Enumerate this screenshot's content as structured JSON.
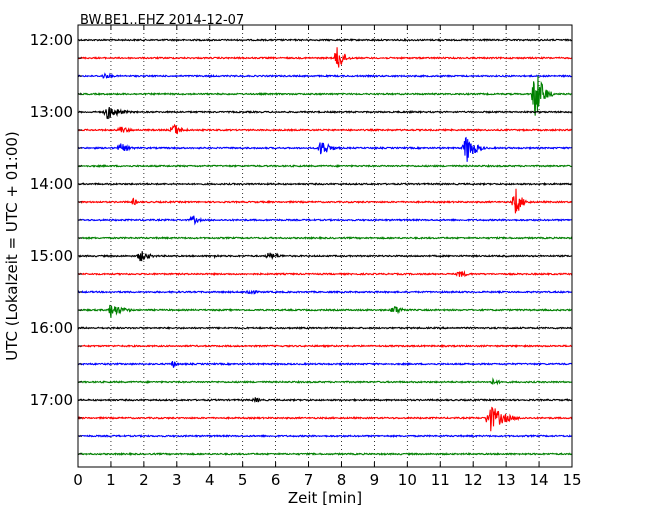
{
  "chart_data": {
    "type": "line",
    "title": "BW.BE1..EHZ 2014-12-07",
    "xlabel": "Zeit  [min]",
    "ylabel": "UTC (Lokalzeit = UTC + 01:00)",
    "xlim": [
      0,
      15
    ],
    "x_ticks": [
      "0",
      "1",
      "2",
      "3",
      "4",
      "5",
      "6",
      "7",
      "8",
      "9",
      "10",
      "11",
      "12",
      "13",
      "14",
      "15"
    ],
    "y_ticks": [
      "12:00",
      "13:00",
      "14:00",
      "15:00",
      "16:00",
      "17:00"
    ],
    "grid": "vertical-dotted",
    "color_cycle": [
      "#000000",
      "#ff0000",
      "#0000ff",
      "#008000"
    ],
    "series": [
      {
        "start": "12:00",
        "color": "#000000",
        "events": []
      },
      {
        "start": "12:15",
        "color": "#ff0000",
        "events": [
          {
            "t": 7.9,
            "amp": 15,
            "dur": 0.5
          }
        ]
      },
      {
        "start": "12:30",
        "color": "#0000ff",
        "events": [
          {
            "t": 0.8,
            "amp": 3,
            "dur": 0.8
          }
        ]
      },
      {
        "start": "12:45",
        "color": "#008000",
        "events": [
          {
            "t": 13.9,
            "amp": 30,
            "dur": 0.6
          }
        ]
      },
      {
        "start": "13:00",
        "color": "#000000",
        "events": [
          {
            "t": 0.9,
            "amp": 8,
            "dur": 1.0
          }
        ]
      },
      {
        "start": "13:15",
        "color": "#ff0000",
        "events": [
          {
            "t": 1.3,
            "amp": 4,
            "dur": 0.8
          },
          {
            "t": 2.9,
            "amp": 7,
            "dur": 0.7
          }
        ]
      },
      {
        "start": "13:30",
        "color": "#0000ff",
        "events": [
          {
            "t": 1.3,
            "amp": 5,
            "dur": 0.8
          },
          {
            "t": 7.4,
            "amp": 10,
            "dur": 0.7
          },
          {
            "t": 11.8,
            "amp": 16,
            "dur": 0.7
          }
        ]
      },
      {
        "start": "13:45",
        "color": "#008000",
        "events": []
      },
      {
        "start": "14:00",
        "color": "#000000",
        "events": []
      },
      {
        "start": "14:15",
        "color": "#ff0000",
        "events": [
          {
            "t": 1.7,
            "amp": 4,
            "dur": 0.3
          },
          {
            "t": 13.3,
            "amp": 15,
            "dur": 0.5
          }
        ]
      },
      {
        "start": "14:30",
        "color": "#0000ff",
        "events": [
          {
            "t": 3.5,
            "amp": 5,
            "dur": 0.5
          }
        ]
      },
      {
        "start": "14:45",
        "color": "#008000",
        "events": []
      },
      {
        "start": "15:00",
        "color": "#000000",
        "events": [
          {
            "t": 1.9,
            "amp": 6,
            "dur": 0.8
          },
          {
            "t": 4.2,
            "amp": 2,
            "dur": 0.3
          },
          {
            "t": 5.8,
            "amp": 4,
            "dur": 1.0
          }
        ]
      },
      {
        "start": "15:15",
        "color": "#ff0000",
        "events": [
          {
            "t": 11.6,
            "amp": 4,
            "dur": 0.7
          }
        ]
      },
      {
        "start": "15:30",
        "color": "#0000ff",
        "events": [
          {
            "t": 5.2,
            "amp": 4,
            "dur": 0.6
          }
        ]
      },
      {
        "start": "15:45",
        "color": "#008000",
        "events": [
          {
            "t": 1.0,
            "amp": 8,
            "dur": 1.0
          },
          {
            "t": 9.6,
            "amp": 5,
            "dur": 0.8
          }
        ]
      },
      {
        "start": "16:00",
        "color": "#000000",
        "events": []
      },
      {
        "start": "16:15",
        "color": "#ff0000",
        "events": []
      },
      {
        "start": "16:30",
        "color": "#0000ff",
        "events": [
          {
            "t": 2.9,
            "amp": 4,
            "dur": 0.3
          }
        ]
      },
      {
        "start": "16:45",
        "color": "#008000",
        "events": [
          {
            "t": 12.6,
            "amp": 3,
            "dur": 0.8
          }
        ]
      },
      {
        "start": "17:00",
        "color": "#000000",
        "events": [
          {
            "t": 5.4,
            "amp": 3,
            "dur": 0.5
          }
        ]
      },
      {
        "start": "17:15",
        "color": "#ff0000",
        "events": [
          {
            "t": 12.5,
            "amp": 15,
            "dur": 1.2
          }
        ]
      },
      {
        "start": "17:30",
        "color": "#0000ff",
        "events": []
      },
      {
        "start": "17:45",
        "color": "#008000",
        "events": []
      }
    ]
  }
}
